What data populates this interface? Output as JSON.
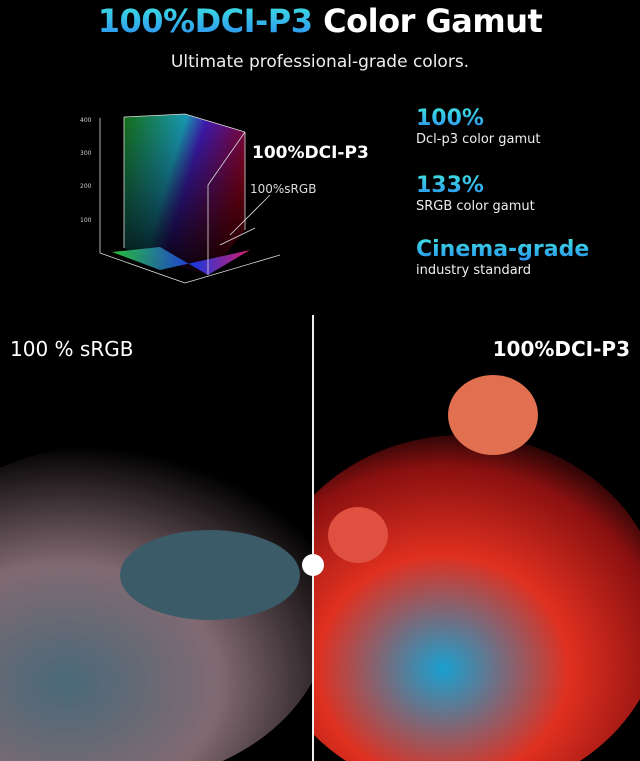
{
  "header": {
    "title_highlight": "100%DCI-P3",
    "title_rest": " Color Gamut",
    "subtitle": "Ultimate professional-grade colors."
  },
  "gamut_graphic": {
    "axis_ticks": [
      "400",
      "300",
      "200",
      "100"
    ],
    "label_large": "100%DCI-P3",
    "label_small": "100%sRGB"
  },
  "stats": [
    {
      "value": "100%",
      "label": "Dcl-p3 color gamut"
    },
    {
      "value": "133%",
      "label": "SRGB color gamut"
    },
    {
      "value": "Cinema-grade",
      "label": "industry standard"
    }
  ],
  "comparison": {
    "left_label": "100 % sRGB",
    "right_label": "100%DCI-P3"
  },
  "colors": {
    "accent_top": "#3fe3e0",
    "accent_bottom": "#2a8df0",
    "background": "#000000"
  }
}
